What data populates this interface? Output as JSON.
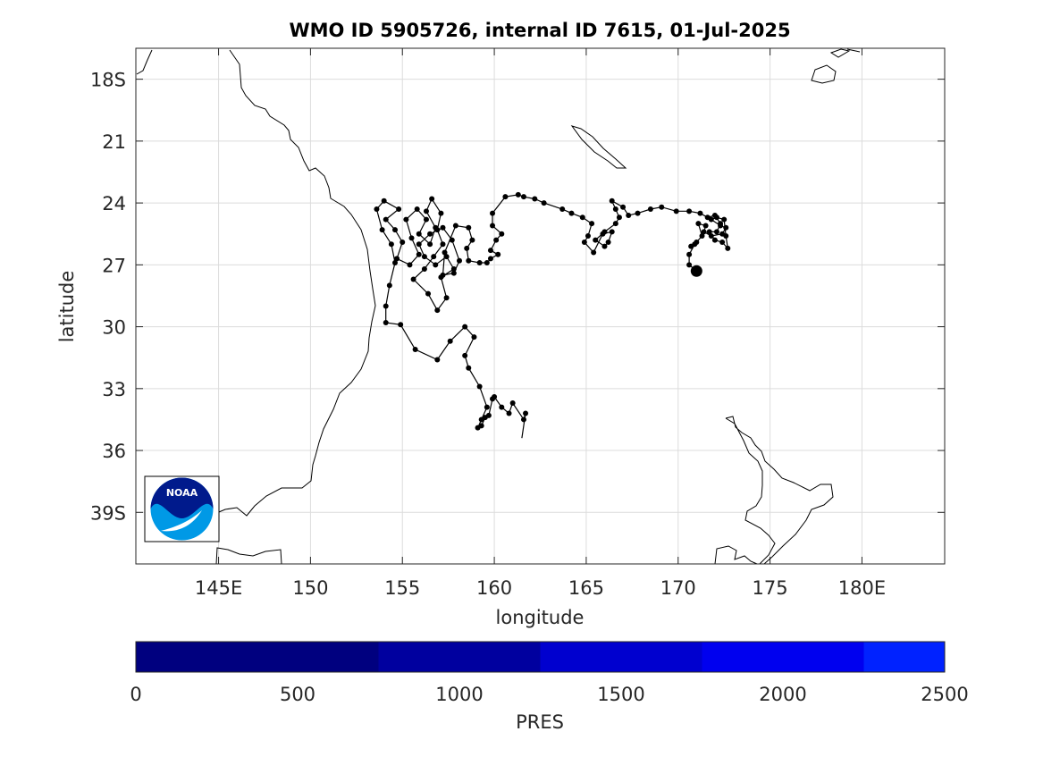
{
  "chart_data": {
    "type": "map-trajectory",
    "title": "WMO ID 5905726, internal ID 7615, 01-Jul-2025",
    "xlabel": "longitude",
    "ylabel": "latitude",
    "xlim": [
      140.5,
      184.5
    ],
    "ylim": [
      -41.5,
      -16.5
    ],
    "xticks": [
      {
        "v": 145,
        "label": "145E"
      },
      {
        "v": 150,
        "label": "150"
      },
      {
        "v": 155,
        "label": "155"
      },
      {
        "v": 160,
        "label": "160"
      },
      {
        "v": 165,
        "label": "165"
      },
      {
        "v": 170,
        "label": "170"
      },
      {
        "v": 175,
        "label": "175"
      },
      {
        "v": 180,
        "label": "180E"
      }
    ],
    "yticks": [
      {
        "v": -18,
        "label": "18S"
      },
      {
        "v": -21,
        "label": "21"
      },
      {
        "v": -24,
        "label": "24"
      },
      {
        "v": -27,
        "label": "27"
      },
      {
        "v": -30,
        "label": "30"
      },
      {
        "v": -33,
        "label": "33"
      },
      {
        "v": -36,
        "label": "36"
      },
      {
        "v": -39,
        "label": "39S"
      }
    ],
    "grid": true,
    "track_color": "#000000",
    "last_position": [
      171.0,
      -27.3
    ],
    "tail_start": [
      161.5,
      -35.4
    ],
    "track": [
      [
        161.5,
        -35.4
      ],
      [
        161.7,
        -34.2
      ],
      [
        161.6,
        -34.5
      ],
      [
        161.0,
        -33.7
      ],
      [
        160.8,
        -34.2
      ],
      [
        160.4,
        -33.9
      ],
      [
        160.0,
        -33.4
      ],
      [
        159.9,
        -33.5
      ],
      [
        159.7,
        -34.3
      ],
      [
        159.5,
        -34.4
      ],
      [
        159.3,
        -34.8
      ],
      [
        159.1,
        -34.9
      ],
      [
        159.3,
        -34.5
      ],
      [
        159.6,
        -33.9
      ],
      [
        159.2,
        -32.9
      ],
      [
        158.6,
        -32.0
      ],
      [
        158.4,
        -31.4
      ],
      [
        158.9,
        -30.5
      ],
      [
        158.4,
        -30.0
      ],
      [
        157.6,
        -30.7
      ],
      [
        156.9,
        -31.6
      ],
      [
        155.7,
        -31.1
      ],
      [
        154.9,
        -29.9
      ],
      [
        154.1,
        -29.8
      ],
      [
        154.1,
        -29.0
      ],
      [
        154.3,
        -28.0
      ],
      [
        154.6,
        -26.9
      ],
      [
        154.4,
        -26.0
      ],
      [
        153.9,
        -25.3
      ],
      [
        153.6,
        -24.3
      ],
      [
        154.0,
        -23.9
      ],
      [
        154.8,
        -24.3
      ],
      [
        154.1,
        -24.8
      ],
      [
        154.6,
        -25.3
      ],
      [
        155.0,
        -25.9
      ],
      [
        154.7,
        -26.7
      ],
      [
        155.4,
        -27.0
      ],
      [
        155.9,
        -26.5
      ],
      [
        155.5,
        -25.7
      ],
      [
        155.2,
        -24.8
      ],
      [
        155.8,
        -24.3
      ],
      [
        156.3,
        -24.8
      ],
      [
        155.9,
        -25.5
      ],
      [
        156.5,
        -26.0
      ],
      [
        156.8,
        -25.2
      ],
      [
        156.3,
        -24.4
      ],
      [
        156.6,
        -23.8
      ],
      [
        157.1,
        -24.5
      ],
      [
        156.9,
        -25.3
      ],
      [
        157.2,
        -26.0
      ],
      [
        156.7,
        -26.6
      ],
      [
        156.2,
        -27.2
      ],
      [
        155.6,
        -27.7
      ],
      [
        156.4,
        -28.4
      ],
      [
        156.9,
        -29.2
      ],
      [
        157.4,
        -28.6
      ],
      [
        157.1,
        -27.6
      ],
      [
        157.8,
        -27.2
      ],
      [
        157.4,
        -26.6
      ],
      [
        156.8,
        -27.0
      ],
      [
        156.2,
        -26.6
      ],
      [
        155.9,
        -26.0
      ],
      [
        156.5,
        -25.5
      ],
      [
        157.2,
        -25.2
      ],
      [
        157.7,
        -25.8
      ],
      [
        158.1,
        -26.8
      ],
      [
        157.8,
        -27.4
      ],
      [
        157.2,
        -27.5
      ],
      [
        157.3,
        -26.4
      ],
      [
        157.9,
        -25.1
      ],
      [
        158.6,
        -25.2
      ],
      [
        158.8,
        -25.8
      ],
      [
        158.5,
        -26.2
      ],
      [
        158.6,
        -26.8
      ],
      [
        159.2,
        -26.9
      ],
      [
        159.6,
        -26.9
      ],
      [
        159.8,
        -26.7
      ],
      [
        160.2,
        -26.5
      ],
      [
        159.8,
        -26.3
      ],
      [
        160.1,
        -25.8
      ],
      [
        160.4,
        -25.5
      ],
      [
        159.9,
        -25.1
      ],
      [
        159.9,
        -24.5
      ],
      [
        160.6,
        -23.7
      ],
      [
        161.3,
        -23.6
      ],
      [
        161.6,
        -23.7
      ],
      [
        162.2,
        -23.8
      ],
      [
        162.7,
        -24.0
      ],
      [
        163.7,
        -24.3
      ],
      [
        164.2,
        -24.5
      ],
      [
        164.8,
        -24.7
      ],
      [
        165.3,
        -25.0
      ],
      [
        165.1,
        -25.6
      ],
      [
        164.9,
        -25.9
      ],
      [
        165.4,
        -26.4
      ],
      [
        165.9,
        -25.5
      ],
      [
        166.4,
        -25.4
      ],
      [
        166.2,
        -25.9
      ],
      [
        166.0,
        -26.1
      ],
      [
        165.5,
        -25.8
      ],
      [
        166.0,
        -25.4
      ],
      [
        166.6,
        -25.0
      ],
      [
        166.8,
        -24.7
      ],
      [
        166.6,
        -24.3
      ],
      [
        166.4,
        -23.9
      ],
      [
        167.0,
        -24.2
      ],
      [
        167.3,
        -24.6
      ],
      [
        167.8,
        -24.5
      ],
      [
        168.5,
        -24.3
      ],
      [
        169.1,
        -24.2
      ],
      [
        169.9,
        -24.4
      ],
      [
        170.6,
        -24.4
      ],
      [
        171.2,
        -24.5
      ],
      [
        171.6,
        -24.7
      ],
      [
        172.0,
        -24.6
      ],
      [
        172.3,
        -25.0
      ],
      [
        172.1,
        -25.4
      ],
      [
        171.7,
        -25.4
      ],
      [
        172.0,
        -25.8
      ],
      [
        172.4,
        -25.9
      ],
      [
        172.7,
        -26.2
      ],
      [
        172.6,
        -25.6
      ],
      [
        172.5,
        -24.8
      ],
      [
        172.1,
        -24.7
      ],
      [
        171.8,
        -24.8
      ],
      [
        172.3,
        -25.1
      ],
      [
        172.6,
        -25.2
      ],
      [
        172.4,
        -25.5
      ],
      [
        171.8,
        -25.6
      ],
      [
        171.4,
        -25.4
      ],
      [
        171.5,
        -25.1
      ],
      [
        171.1,
        -25.0
      ],
      [
        171.3,
        -25.6
      ],
      [
        171.0,
        -25.9
      ],
      [
        170.7,
        -26.1
      ],
      [
        170.9,
        -26.0
      ],
      [
        170.6,
        -26.5
      ],
      [
        170.6,
        -27.0
      ],
      [
        171.0,
        -27.3
      ]
    ]
  },
  "colorbar": {
    "label": "PRES",
    "ticks": [
      "0",
      "500",
      "1000",
      "1500",
      "2000",
      "2500"
    ],
    "min": 0,
    "max": 2500,
    "segments": [
      {
        "from": 0,
        "to": 750,
        "color": "#00007f"
      },
      {
        "from": 750,
        "to": 1250,
        "color": "#00009f"
      },
      {
        "from": 1250,
        "to": 1750,
        "color": "#0000cf"
      },
      {
        "from": 1750,
        "to": 2250,
        "color": "#0000ef"
      },
      {
        "from": 2250,
        "to": 2500,
        "color": "#0022ff"
      }
    ]
  },
  "logo": {
    "text": "NOAA",
    "colors": {
      "top": "#001a8c",
      "bottom": "#0099e6"
    }
  }
}
